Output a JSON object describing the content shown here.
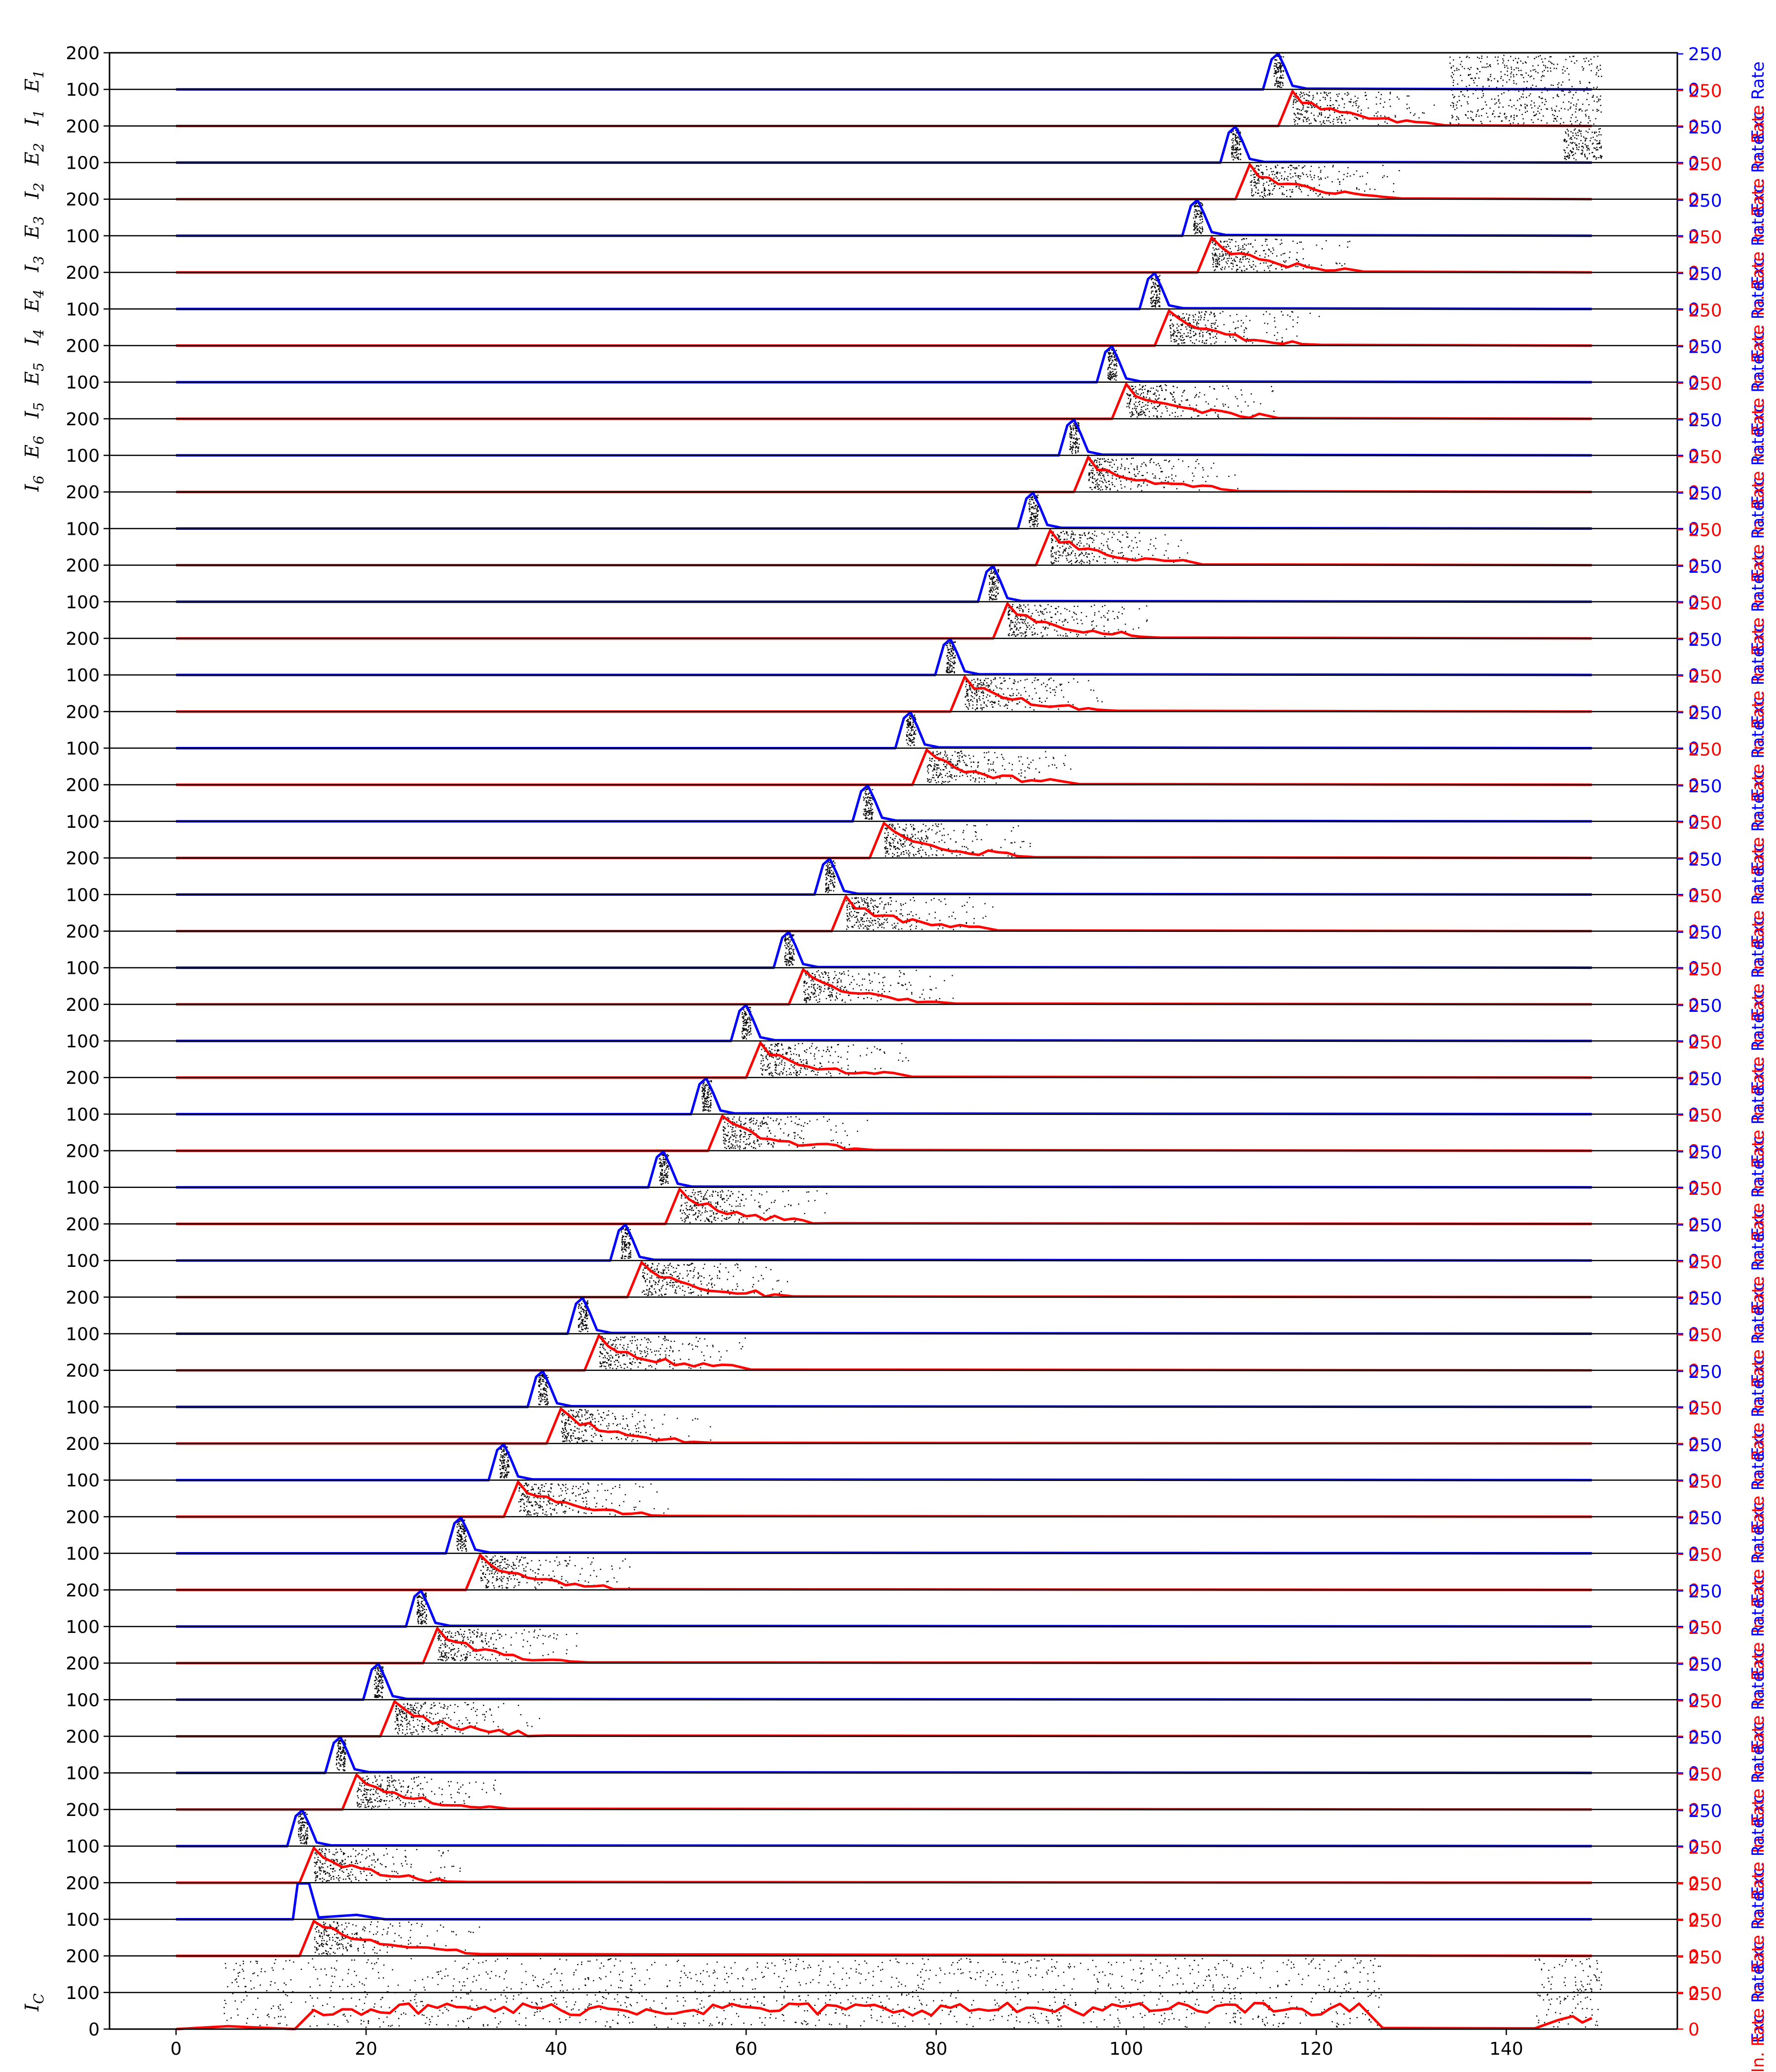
{
  "chart_data": {
    "type": "line",
    "description_tags": [
      "raster",
      "excitatory-rate",
      "inhibitory-rate"
    ],
    "xlim": [
      -7,
      158
    ],
    "x_ticks": [
      0,
      20,
      40,
      60,
      80,
      100,
      120,
      140
    ],
    "left_ticks_per_band": [
      "0",
      "100",
      "200"
    ],
    "right_ticks": [
      "0",
      "250"
    ],
    "left_labels": {
      "E1": "E",
      "E1_sub": "1",
      "I1": "I",
      "I1_sub": "1",
      "E2": "E",
      "E2_sub": "2",
      "I2": "I",
      "I2_sub": "2",
      "E3": "E",
      "E3_sub": "3",
      "I3": "I",
      "I3_sub": "3",
      "E4": "E",
      "E4_sub": "4",
      "I4": "I",
      "I4_sub": "4",
      "E5": "E",
      "E5_sub": "5",
      "I5": "I",
      "I5_sub": "5",
      "E6": "E",
      "E6_sub": "6",
      "I6": "I",
      "I6_sub": "6",
      "IC": "I",
      "IC_sub": "C"
    },
    "right_axis_title_exc": "Exc. Rate",
    "right_axis_title_inh": "In. Rate",
    "n_groups": 27,
    "exc_color": "#0000ff",
    "inh_color": "#ff0000",
    "spike_color": "#000000",
    "x_end": 149,
    "exc_peak_times": [
      116,
      111.5,
      107.5,
      103,
      98.5,
      94.5,
      90.2,
      86,
      81.5,
      77.3,
      72.8,
      68.8,
      64.5,
      60,
      55.8,
      51.3,
      47.3,
      42.8,
      38.6,
      34.5,
      30,
      25.8,
      21.3,
      17.3,
      13.3
    ],
    "inh_onset_times": [
      117.5,
      113,
      109,
      104.5,
      100,
      96,
      92,
      87.5,
      83,
      79,
      74.5,
      70.5,
      66,
      61.5,
      57.5,
      53,
      49,
      44.5,
      40.5,
      36,
      32,
      27.5,
      23,
      19,
      14.5
    ],
    "exc_peak_rate": 250,
    "inh_peak_rate": 250,
    "ic_rate_level": 150
  }
}
